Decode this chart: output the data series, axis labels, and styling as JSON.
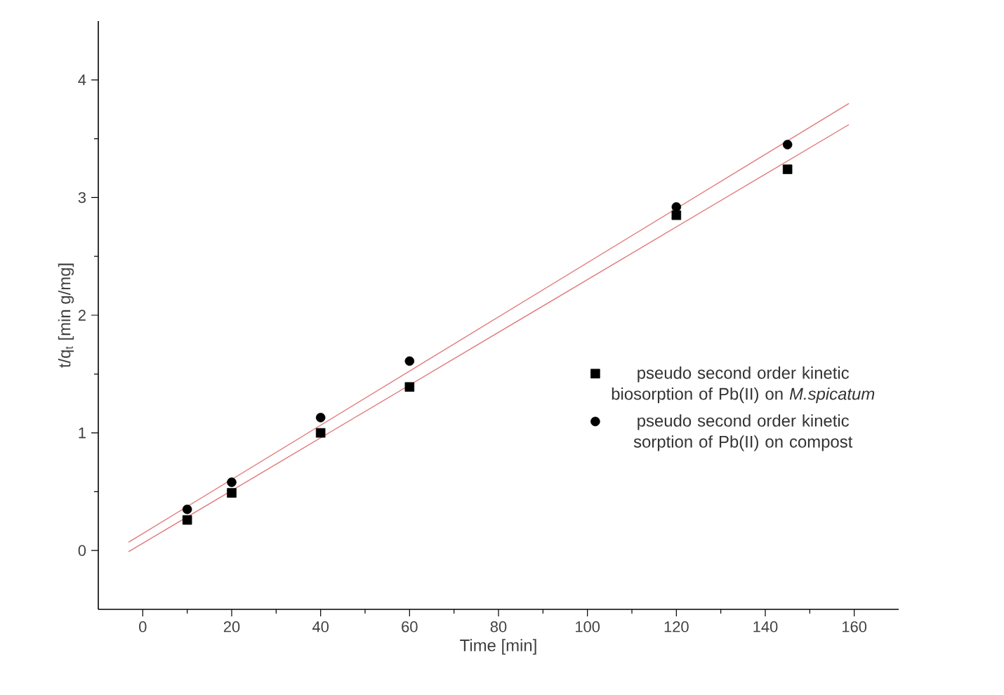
{
  "chart_data": {
    "type": "scatter",
    "xlabel": "Time [min]",
    "ylabel": "t/q$_{t}$ [min g/mg]",
    "xlim": [
      -10,
      170
    ],
    "ylim": [
      -0.5,
      4.5
    ],
    "xticks": [
      0,
      20,
      40,
      60,
      80,
      100,
      120,
      140,
      160
    ],
    "yticks": [
      0,
      1,
      2,
      3,
      4
    ],
    "grid": false,
    "legend": "right",
    "series": [
      {
        "name": "pseudo second order kinetic biosorption of Pb(II) on *M.spicatum*",
        "color": "#000000",
        "marker": "square",
        "x": [
          10,
          20,
          40,
          60,
          120,
          145
        ],
        "values": [
          0.26,
          0.49,
          1.0,
          1.39,
          2.85,
          3.24
        ]
      },
      {
        "name": "pseudo second order kinetic sorption of Pb(II) on compost",
        "color": "#000000",
        "marker": "circle",
        "x": [
          10,
          20,
          40,
          60,
          120,
          145
        ],
        "values": [
          0.35,
          0.58,
          1.13,
          1.61,
          2.92,
          3.45
        ]
      },
      {
        "type": "line",
        "color": "#e07878",
        "marker": "none",
        "x": [
          -3.2,
          158.8
        ],
        "values": [
          -0.01,
          3.62
        ]
      },
      {
        "type": "line",
        "color": "#e07878",
        "marker": "none",
        "x": [
          -3.2,
          158.8
        ],
        "values": [
          0.07,
          3.8
        ]
      }
    ]
  }
}
